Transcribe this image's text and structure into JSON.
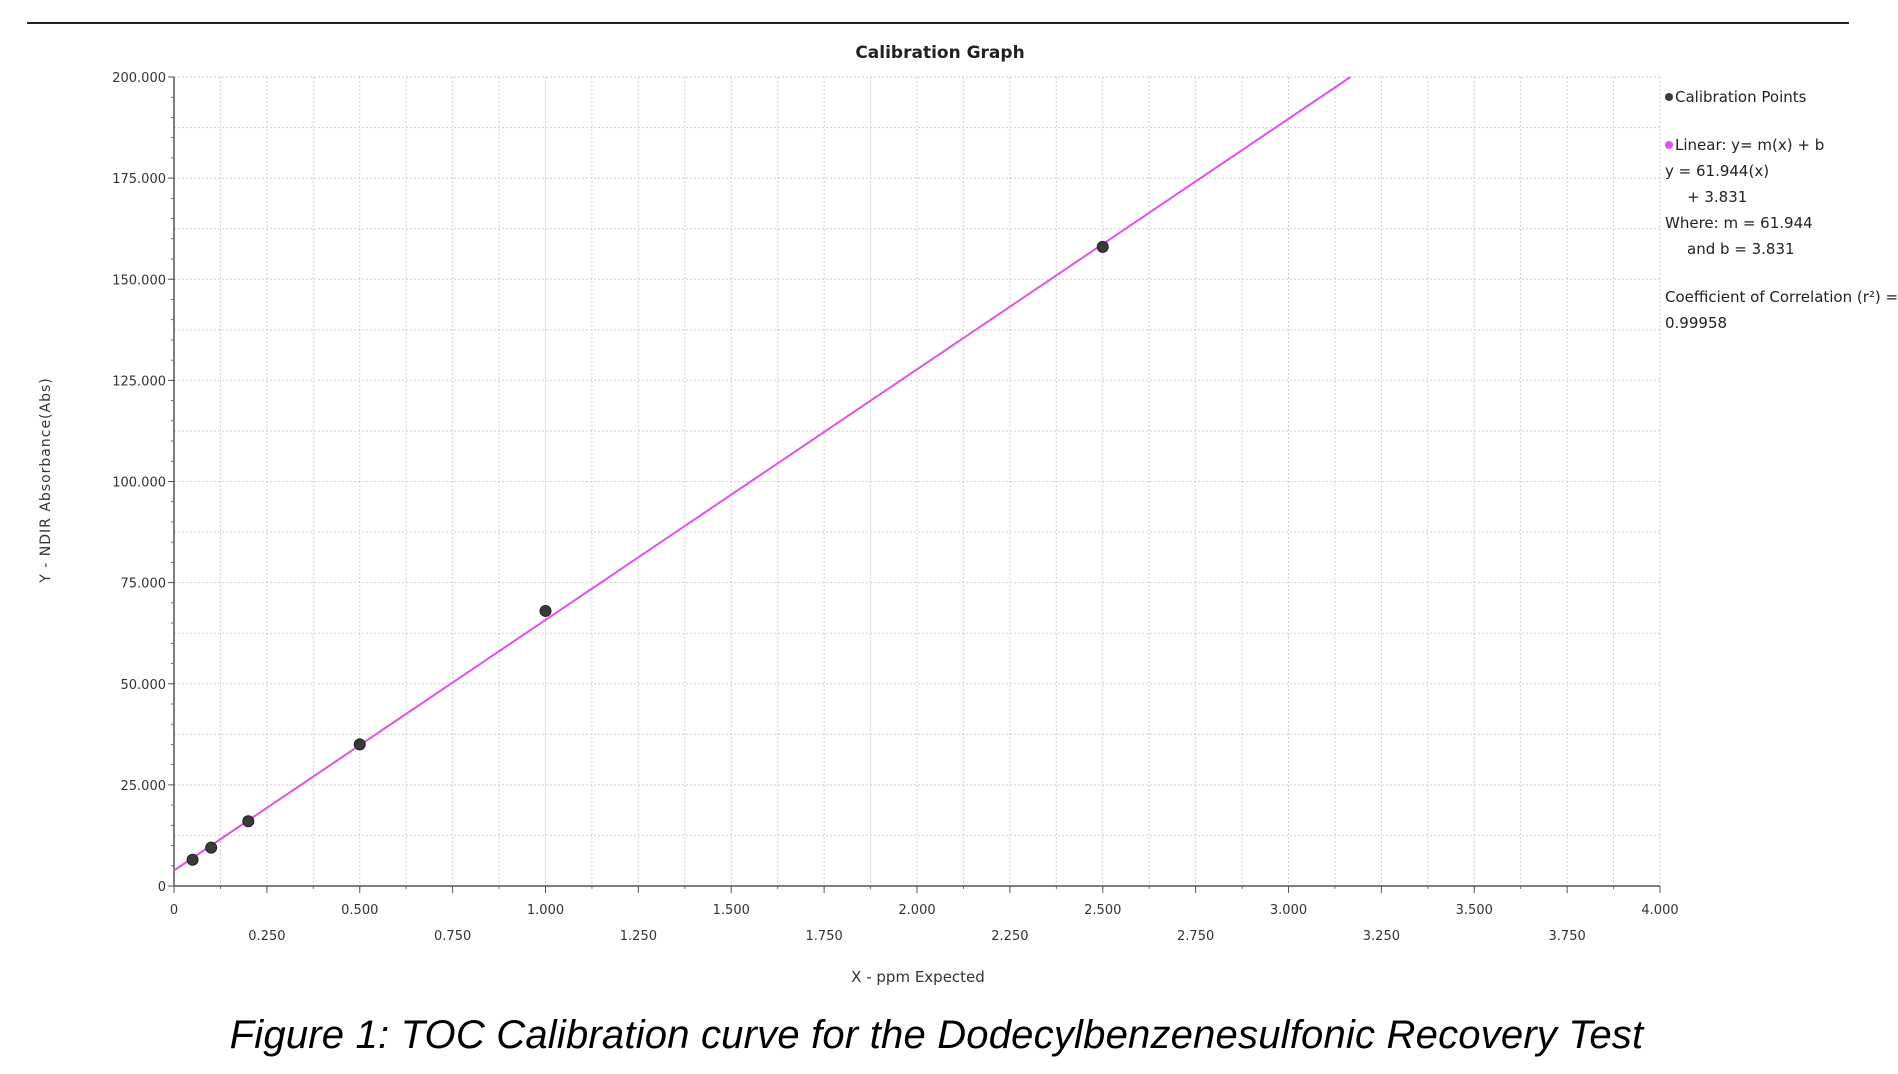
{
  "caption": "Figure 1:  TOC Calibration curve for the Dodecylbenzenesulfonic Recovery Test",
  "colors": {
    "fit_line": "#e052e8",
    "points": "#3a3a3a",
    "grid": "#cfcfcf",
    "axis": "#555555"
  },
  "legend": {
    "points_label": "Calibration Points",
    "linear_label": "Linear:  y= m(x) + b",
    "eq_line1": "y = 61.944(x)",
    "eq_line2": "+ 3.831",
    "where_line1": "Where:  m = 61.944",
    "where_line2": "and    b = 3.831",
    "corr_line1": "Coefficient of Correlation (r²) =",
    "corr_line2": "0.99958"
  },
  "chart_data": {
    "type": "scatter",
    "title": "Calibration Graph",
    "xlabel": "X - ppm Expected",
    "ylabel": "Y - NDIR Absorbance(Abs)",
    "xlim": [
      0,
      4.0
    ],
    "ylim": [
      0,
      200.0
    ],
    "x_ticks_upper": [
      "0",
      "0.500",
      "1.000",
      "1.500",
      "2.000",
      "2.500",
      "3.000",
      "3.500",
      "4.000"
    ],
    "x_ticks_lower": [
      "0.250",
      "0.750",
      "1.250",
      "1.750",
      "2.250",
      "2.750",
      "3.250",
      "3.750"
    ],
    "y_ticks": [
      "0",
      "25.000",
      "50.000",
      "75.000",
      "100.000",
      "125.000",
      "150.000",
      "175.000",
      "200.000"
    ],
    "grid": true,
    "legend_position": "right",
    "series": [
      {
        "name": "Calibration Points",
        "points": [
          {
            "x": 0.05,
            "y": 6.5
          },
          {
            "x": 0.1,
            "y": 9.5
          },
          {
            "x": 0.2,
            "y": 16.0
          },
          {
            "x": 0.5,
            "y": 35.0
          },
          {
            "x": 1.0,
            "y": 68.0
          },
          {
            "x": 2.5,
            "y": 158.0
          }
        ]
      },
      {
        "name": "Linear:  y= m(x) + b",
        "fit": {
          "m": 61.944,
          "b": 3.831
        }
      }
    ]
  }
}
